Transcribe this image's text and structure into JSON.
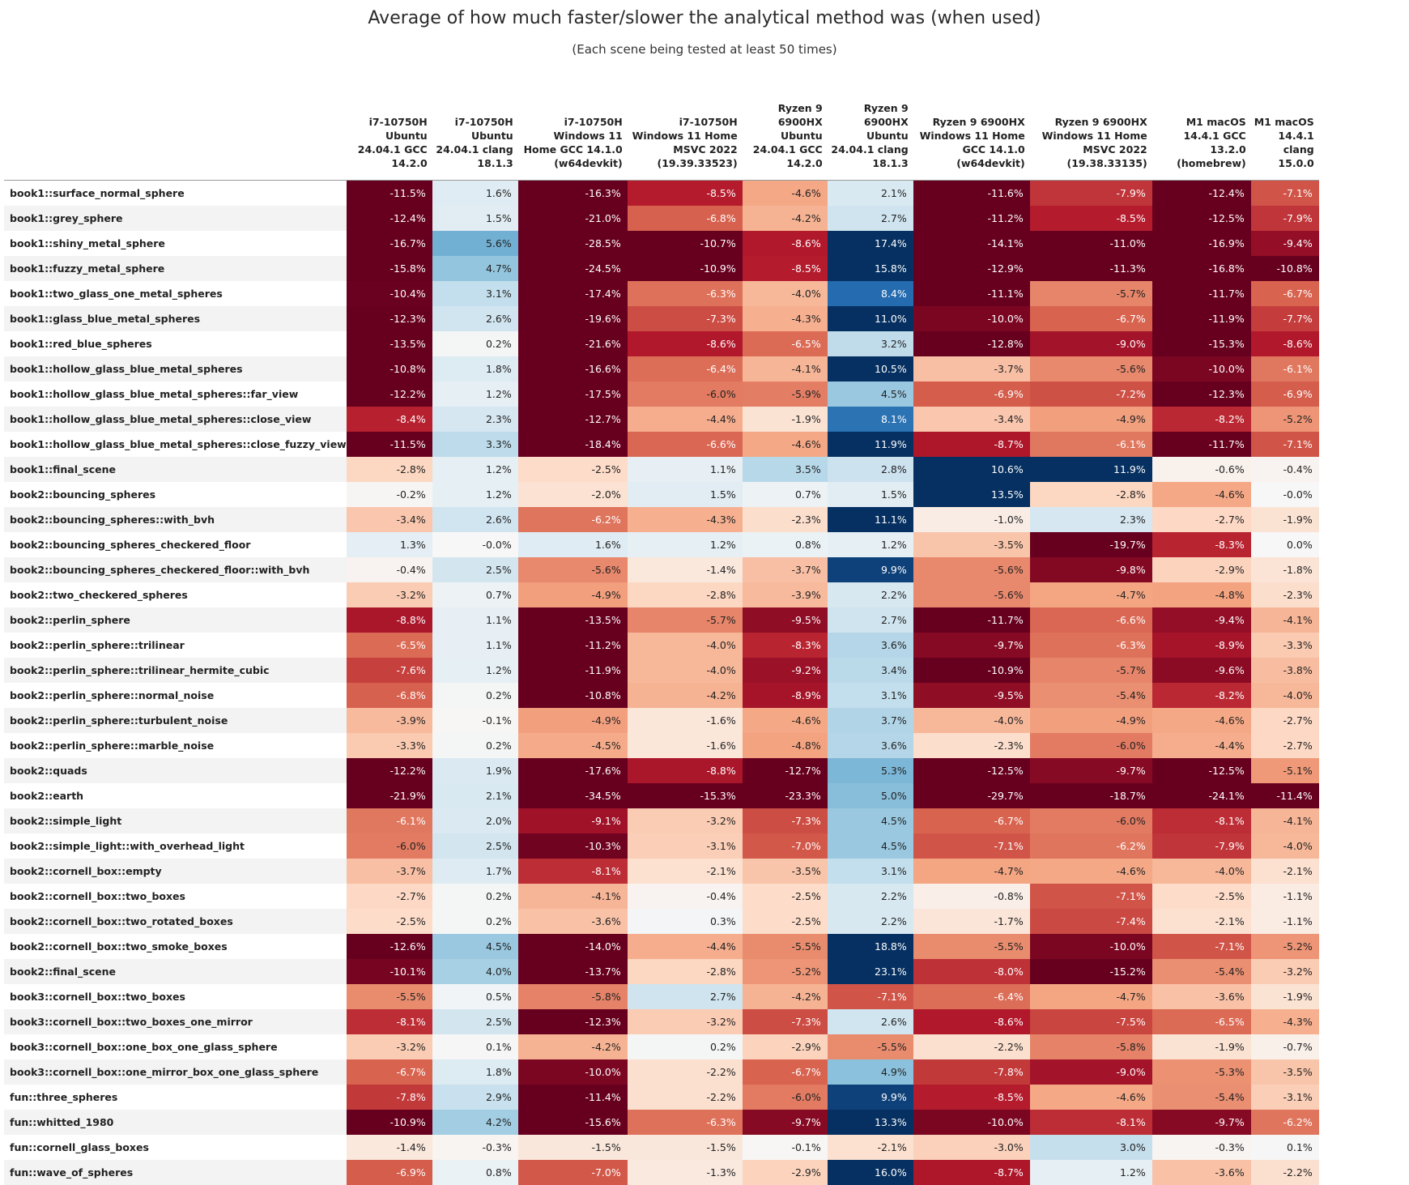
{
  "chart_data": {
    "type": "heatmap",
    "title": "Average of how much faster/slower the analytical method was (when used)",
    "subtitle": "(Each scene being tested at least 50 times)",
    "value_suffix": "%",
    "colormap": "diverging red (negative) - white - blue (positive)",
    "color_scale": {
      "negative_extreme": "#67001f",
      "neutral": "#f7f7f7",
      "positive_extreme": "#053061"
    },
    "columns": [
      "i7-10750H Ubuntu 24.04.1 GCC 14.2.0",
      "i7-10750H Ubuntu 24.04.1 clang 18.1.3",
      "i7-10750H Windows 11 Home GCC 14.1.0 (w64devkit)",
      "i7-10750H Windows 11 Home MSVC 2022 (19.39.33523)",
      "Ryzen 9 6900HX Ubuntu 24.04.1 GCC 14.2.0",
      "Ryzen 9 6900HX Ubuntu 24.04.1 clang 18.1.3",
      "Ryzen 9 6900HX Windows 11 Home GCC 14.1.0 (w64devkit)",
      "Ryzen 9 6900HX Windows 11 Home MSVC 2022 (19.38.33135)",
      "M1 macOS 14.4.1 GCC 13.2.0 (homebrew)",
      "M1 macOS 14.4.1 clang 15.0.0"
    ],
    "rows": [
      "book1::surface_normal_sphere",
      "book1::grey_sphere",
      "book1::shiny_metal_sphere",
      "book1::fuzzy_metal_sphere",
      "book1::two_glass_one_metal_spheres",
      "book1::glass_blue_metal_spheres",
      "book1::red_blue_spheres",
      "book1::hollow_glass_blue_metal_spheres",
      "book1::hollow_glass_blue_metal_spheres::far_view",
      "book1::hollow_glass_blue_metal_spheres::close_view",
      "book1::hollow_glass_blue_metal_spheres::close_fuzzy_view",
      "book1::final_scene",
      "book2::bouncing_spheres",
      "book2::bouncing_spheres::with_bvh",
      "book2::bouncing_spheres_checkered_floor",
      "book2::bouncing_spheres_checkered_floor::with_bvh",
      "book2::two_checkered_spheres",
      "book2::perlin_sphere",
      "book2::perlin_sphere::trilinear",
      "book2::perlin_sphere::trilinear_hermite_cubic",
      "book2::perlin_sphere::normal_noise",
      "book2::perlin_sphere::turbulent_noise",
      "book2::perlin_sphere::marble_noise",
      "book2::quads",
      "book2::earth",
      "book2::simple_light",
      "book2::simple_light::with_overhead_light",
      "book2::cornell_box::empty",
      "book2::cornell_box::two_boxes",
      "book2::cornell_box::two_rotated_boxes",
      "book2::cornell_box::two_smoke_boxes",
      "book2::final_scene",
      "book3::cornell_box::two_boxes",
      "book3::cornell_box::two_boxes_one_mirror",
      "book3::cornell_box::one_box_one_glass_sphere",
      "book3::cornell_box::one_mirror_box_one_glass_sphere",
      "fun::three_spheres",
      "fun::whitted_1980",
      "fun::cornell_glass_boxes",
      "fun::wave_of_spheres"
    ],
    "values": [
      [
        "-11.5",
        "1.6",
        "-16.3",
        "-8.5",
        "-4.6",
        "2.1",
        "-11.6",
        "-7.9",
        "-12.4",
        "-7.1"
      ],
      [
        "-12.4",
        "1.5",
        "-21.0",
        "-6.8",
        "-4.2",
        "2.7",
        "-11.2",
        "-8.5",
        "-12.5",
        "-7.9"
      ],
      [
        "-16.7",
        "5.6",
        "-28.5",
        "-10.7",
        "-8.6",
        "17.4",
        "-14.1",
        "-11.0",
        "-16.9",
        "-9.4"
      ],
      [
        "-15.8",
        "4.7",
        "-24.5",
        "-10.9",
        "-8.5",
        "15.8",
        "-12.9",
        "-11.3",
        "-16.8",
        "-10.8"
      ],
      [
        "-10.4",
        "3.1",
        "-17.4",
        "-6.3",
        "-4.0",
        "8.4",
        "-11.1",
        "-5.7",
        "-11.7",
        "-6.7"
      ],
      [
        "-12.3",
        "2.6",
        "-19.6",
        "-7.3",
        "-4.3",
        "11.0",
        "-10.0",
        "-6.7",
        "-11.9",
        "-7.7"
      ],
      [
        "-13.5",
        "0.2",
        "-21.6",
        "-8.6",
        "-6.5",
        "3.2",
        "-12.8",
        "-9.0",
        "-15.3",
        "-8.6"
      ],
      [
        "-10.8",
        "1.8",
        "-16.6",
        "-6.4",
        "-4.1",
        "10.5",
        "-3.7",
        "-5.6",
        "-10.0",
        "-6.1"
      ],
      [
        "-12.2",
        "1.2",
        "-17.5",
        "-6.0",
        "-5.9",
        "4.5",
        "-6.9",
        "-7.2",
        "-12.3",
        "-6.9"
      ],
      [
        "-8.4",
        "2.3",
        "-12.7",
        "-4.4",
        "-1.9",
        "8.1",
        "-3.4",
        "-4.9",
        "-8.2",
        "-5.2"
      ],
      [
        "-11.5",
        "3.3",
        "-18.4",
        "-6.6",
        "-4.6",
        "11.9",
        "-8.7",
        "-6.1",
        "-11.7",
        "-7.1"
      ],
      [
        "-2.8",
        "1.2",
        "-2.5",
        "1.1",
        "3.5",
        "2.8",
        "10.6",
        "11.9",
        "-0.6",
        "-0.4"
      ],
      [
        "-0.2",
        "1.2",
        "-2.0",
        "1.5",
        "0.7",
        "1.5",
        "13.5",
        "-2.8",
        "-4.6",
        "-0.0"
      ],
      [
        "-3.4",
        "2.6",
        "-6.2",
        "-4.3",
        "-2.3",
        "11.1",
        "-1.0",
        "2.3",
        "-2.7",
        "-1.9"
      ],
      [
        "1.3",
        "-0.0",
        "1.6",
        "1.2",
        "0.8",
        "1.2",
        "-3.5",
        "-19.7",
        "-8.3",
        "0.0"
      ],
      [
        "-0.4",
        "2.5",
        "-5.6",
        "-1.4",
        "-3.7",
        "9.9",
        "-5.6",
        "-9.8",
        "-2.9",
        "-1.8"
      ],
      [
        "-3.2",
        "0.7",
        "-4.9",
        "-2.8",
        "-3.9",
        "2.2",
        "-5.6",
        "-4.7",
        "-4.8",
        "-2.3"
      ],
      [
        "-8.8",
        "1.1",
        "-13.5",
        "-5.7",
        "-9.5",
        "2.7",
        "-11.7",
        "-6.6",
        "-9.4",
        "-4.1"
      ],
      [
        "-6.5",
        "1.1",
        "-11.2",
        "-4.0",
        "-8.3",
        "3.6",
        "-9.7",
        "-6.3",
        "-8.9",
        "-3.3"
      ],
      [
        "-7.6",
        "1.2",
        "-11.9",
        "-4.0",
        "-9.2",
        "3.4",
        "-10.9",
        "-5.7",
        "-9.6",
        "-3.8"
      ],
      [
        "-6.8",
        "0.2",
        "-10.8",
        "-4.2",
        "-8.9",
        "3.1",
        "-9.5",
        "-5.4",
        "-8.2",
        "-4.0"
      ],
      [
        "-3.9",
        "-0.1",
        "-4.9",
        "-1.6",
        "-4.6",
        "3.7",
        "-4.0",
        "-4.9",
        "-4.6",
        "-2.7"
      ],
      [
        "-3.3",
        "0.2",
        "-4.5",
        "-1.6",
        "-4.8",
        "3.6",
        "-2.3",
        "-6.0",
        "-4.4",
        "-2.7"
      ],
      [
        "-12.2",
        "1.9",
        "-17.6",
        "-8.8",
        "-12.7",
        "5.3",
        "-12.5",
        "-9.7",
        "-12.5",
        "-5.1"
      ],
      [
        "-21.9",
        "2.1",
        "-34.5",
        "-15.3",
        "-23.3",
        "5.0",
        "-29.7",
        "-18.7",
        "-24.1",
        "-11.4"
      ],
      [
        "-6.1",
        "2.0",
        "-9.1",
        "-3.2",
        "-7.3",
        "4.5",
        "-6.7",
        "-6.0",
        "-8.1",
        "-4.1"
      ],
      [
        "-6.0",
        "2.5",
        "-10.3",
        "-3.1",
        "-7.0",
        "4.5",
        "-7.1",
        "-6.2",
        "-7.9",
        "-4.0"
      ],
      [
        "-3.7",
        "1.7",
        "-8.1",
        "-2.1",
        "-3.5",
        "3.1",
        "-4.7",
        "-4.6",
        "-4.0",
        "-2.1"
      ],
      [
        "-2.7",
        "0.2",
        "-4.1",
        "-0.4",
        "-2.5",
        "2.2",
        "-0.8",
        "-7.1",
        "-2.5",
        "-1.1"
      ],
      [
        "-2.5",
        "0.2",
        "-3.6",
        "0.3",
        "-2.5",
        "2.2",
        "-1.7",
        "-7.4",
        "-2.1",
        "-1.1"
      ],
      [
        "-12.6",
        "4.5",
        "-14.0",
        "-4.4",
        "-5.5",
        "18.8",
        "-5.5",
        "-10.0",
        "-7.1",
        "-5.2"
      ],
      [
        "-10.1",
        "4.0",
        "-13.7",
        "-2.8",
        "-5.2",
        "23.1",
        "-8.0",
        "-15.2",
        "-5.4",
        "-3.2"
      ],
      [
        "-5.5",
        "0.5",
        "-5.8",
        "2.7",
        "-4.2",
        "-7.1",
        "-6.4",
        "-4.7",
        "-3.6",
        "-1.9"
      ],
      [
        "-8.1",
        "2.5",
        "-12.3",
        "-3.2",
        "-7.3",
        "2.6",
        "-8.6",
        "-7.5",
        "-6.5",
        "-4.3"
      ],
      [
        "-3.2",
        "0.1",
        "-4.2",
        "0.2",
        "-2.9",
        "-5.5",
        "-2.2",
        "-5.8",
        "-1.9",
        "-0.7"
      ],
      [
        "-6.7",
        "1.8",
        "-10.0",
        "-2.2",
        "-6.7",
        "4.9",
        "-7.8",
        "-9.0",
        "-5.3",
        "-3.5"
      ],
      [
        "-7.8",
        "2.9",
        "-11.4",
        "-2.2",
        "-6.0",
        "9.9",
        "-8.5",
        "-4.6",
        "-5.4",
        "-3.1"
      ],
      [
        "-10.9",
        "4.2",
        "-15.6",
        "-6.3",
        "-9.7",
        "13.3",
        "-10.0",
        "-8.1",
        "-9.7",
        "-6.2"
      ],
      [
        "-1.4",
        "-0.3",
        "-1.5",
        "-1.5",
        "-0.1",
        "-2.1",
        "-3.0",
        "3.0",
        "-0.3",
        "0.1"
      ],
      [
        "-6.9",
        "0.8",
        "-7.0",
        "-1.3",
        "-2.9",
        "16.0",
        "-8.7",
        "1.2",
        "-3.6",
        "-2.2"
      ]
    ]
  }
}
